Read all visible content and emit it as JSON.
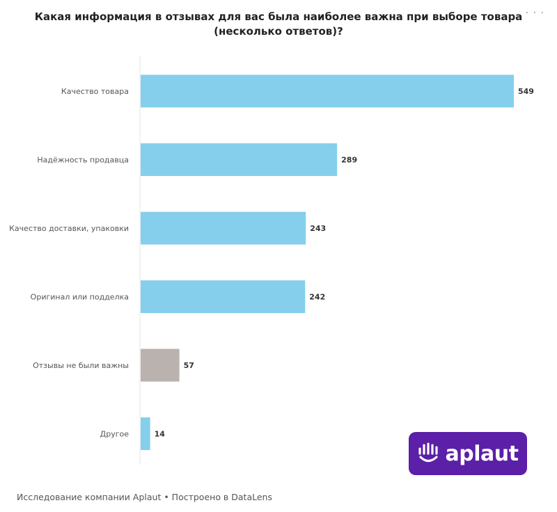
{
  "header": {
    "title": "Какая информация в отзывах для вас была наиболее важна при выборе товара (несколько ответов)?",
    "menu_icon": "more-horizontal-icon"
  },
  "chart_data": {
    "type": "bar",
    "orientation": "horizontal",
    "title": "Какая информация в отзывах для вас была наиболее важна при выборе товара (несколько ответов)?",
    "categories": [
      "Качество товара",
      "Надёжность продавца",
      "Качество доставки, упаковки",
      "Оригинал или подделка",
      "Отзывы не были важны",
      "Другое"
    ],
    "values": [
      549,
      289,
      243,
      242,
      57,
      14
    ],
    "colors": [
      "#85cfed",
      "#85cfed",
      "#85cfed",
      "#85cfed",
      "#bab2af",
      "#85cfed"
    ],
    "xlim": [
      0,
      549
    ],
    "grid": false,
    "legend": "none",
    "data_labels": true
  },
  "logo": {
    "text": "aplaut",
    "background": "#5b1fa8",
    "icon": "hand-smile-icon"
  },
  "footer": {
    "text": "Исследование компании Aplaut • Построено в DataLens"
  }
}
